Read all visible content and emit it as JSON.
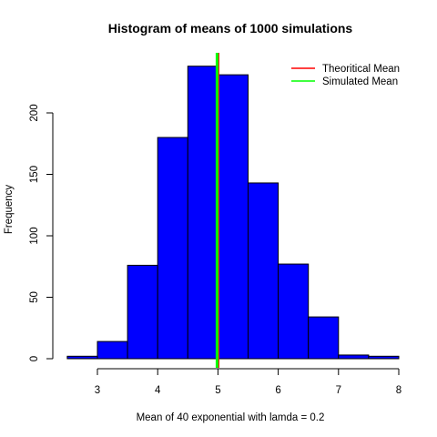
{
  "chart_data": {
    "type": "bar",
    "title": "Histogram of means of 1000 simulations",
    "xlabel": "Mean of 40 exponential with lamda = 0.2",
    "ylabel": "Frequency",
    "bin_edges": [
      2.5,
      3.0,
      3.5,
      4.0,
      4.5,
      5.0,
      5.5,
      6.0,
      6.5,
      7.0,
      7.5,
      8.0
    ],
    "values": [
      2,
      14,
      76,
      180,
      238,
      231,
      143,
      77,
      34,
      3,
      2
    ],
    "xlim": [
      2.5,
      8.0
    ],
    "ylim": [
      0,
      245
    ],
    "x_ticks": [
      3,
      4,
      5,
      6,
      7,
      8
    ],
    "y_ticks": [
      0,
      50,
      100,
      150,
      200
    ],
    "bar_color": "#0000ff",
    "bar_border_color": "#000000",
    "theoretical_mean": 5.0,
    "simulated_mean": 4.985,
    "theoretical_color": "#ff0000",
    "simulated_color": "#00ff00",
    "legend": {
      "position": "top-right",
      "entries": [
        {
          "label": "Theoritical Mean",
          "color": "#ff0000"
        },
        {
          "label": "Simulated Mean",
          "color": "#00ff00"
        }
      ]
    }
  }
}
